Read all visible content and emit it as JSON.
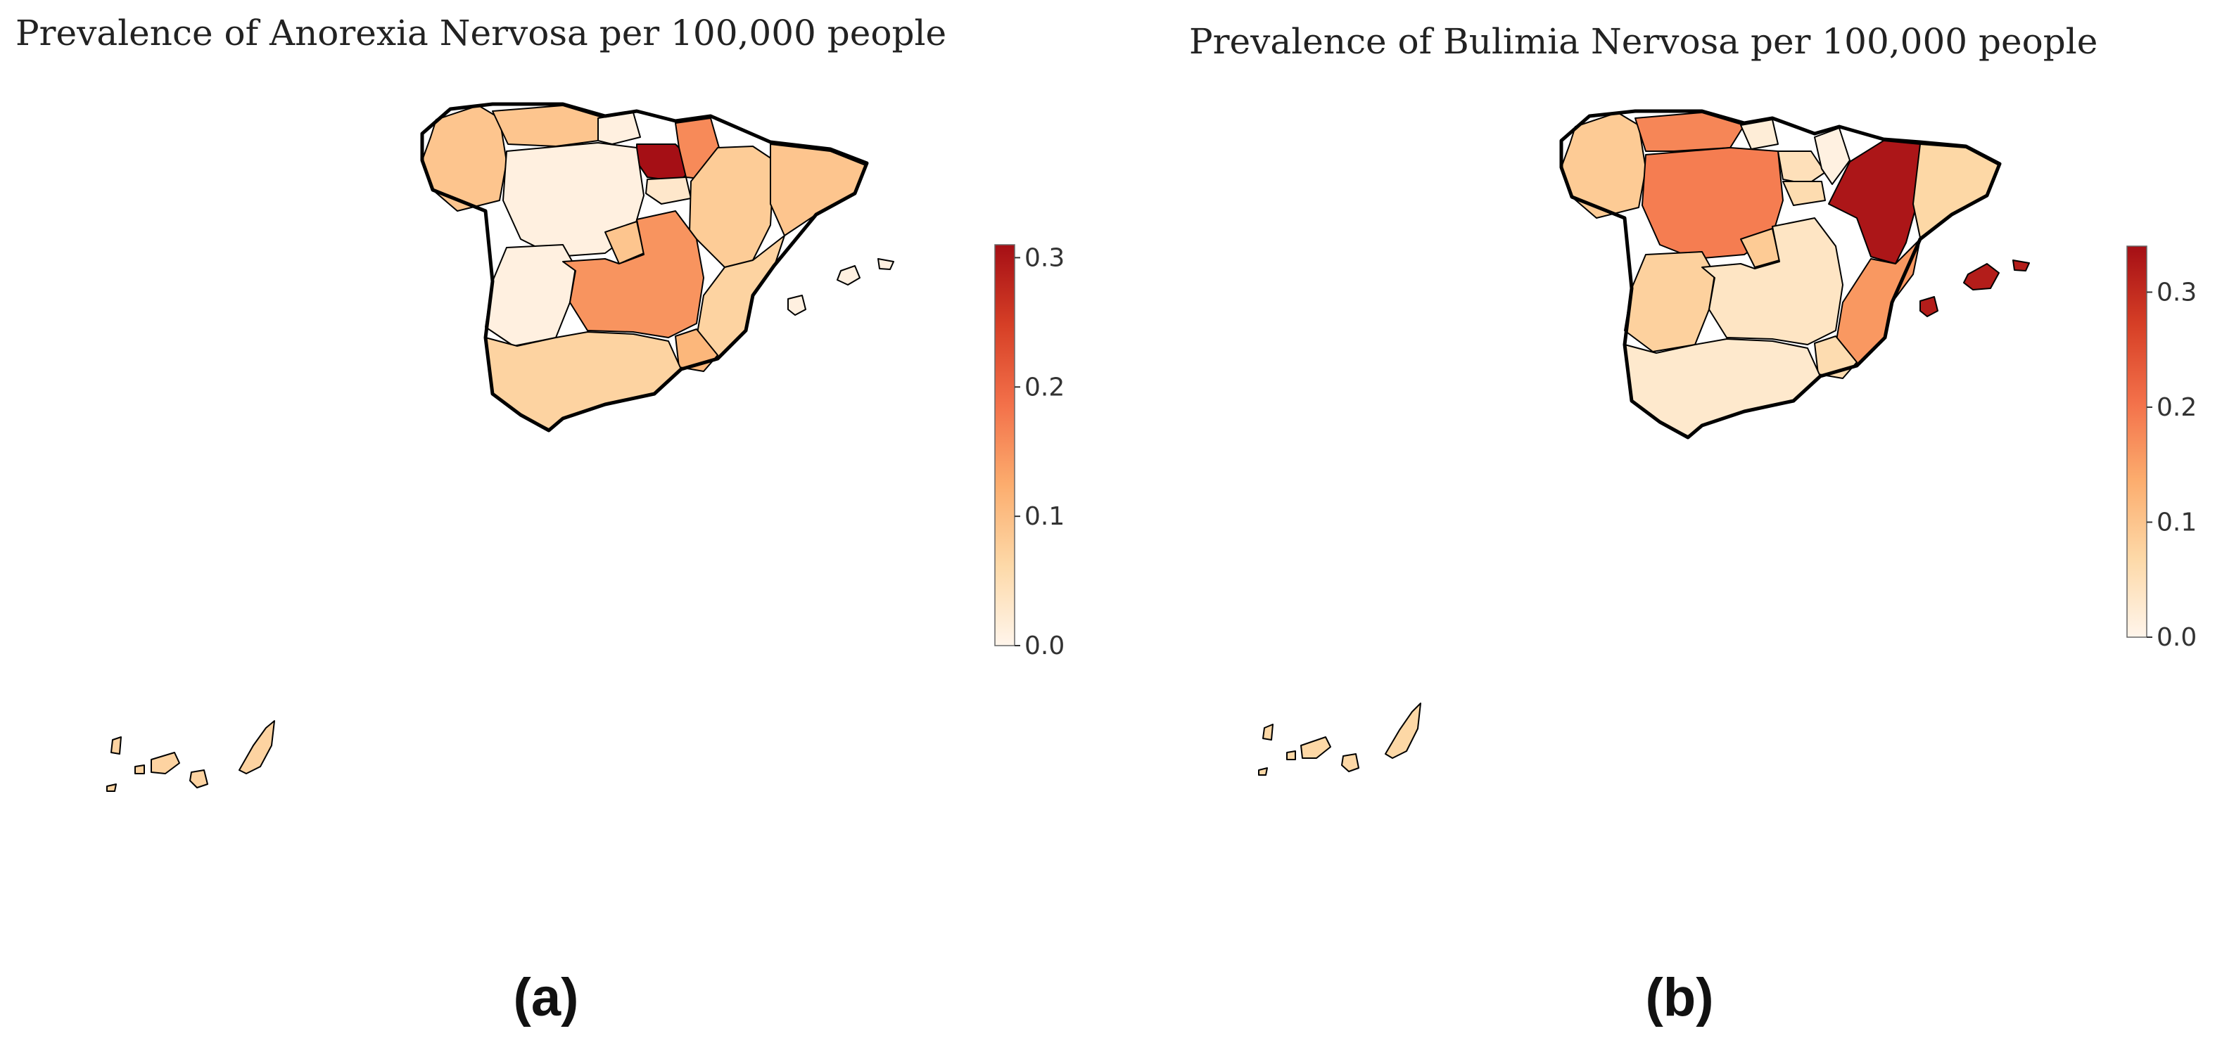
{
  "figure": {
    "panels": [
      {
        "id": "a",
        "title": "Prevalence of Anorexia Nervosa per 100,000 people",
        "label": "(a)",
        "colorbar": {
          "min": 0.0,
          "max": 0.31,
          "ticks": [
            "0.0",
            "0.1",
            "0.2",
            "0.3"
          ]
        },
        "regions": [
          {
            "name": "Galicia",
            "value": 0.09
          },
          {
            "name": "Asturias",
            "value": 0.09
          },
          {
            "name": "Cantabria",
            "value": 0.01
          },
          {
            "name": "País Vasco",
            "value": 0.31
          },
          {
            "name": "Navarra",
            "value": 0.16
          },
          {
            "name": "La Rioja",
            "value": 0.03
          },
          {
            "name": "Aragón",
            "value": 0.08
          },
          {
            "name": "Cataluña",
            "value": 0.09
          },
          {
            "name": "Castilla y León",
            "value": 0.01
          },
          {
            "name": "Madrid",
            "value": 0.09
          },
          {
            "name": "Extremadura",
            "value": 0.01
          },
          {
            "name": "Castilla-La Mancha",
            "value": 0.15
          },
          {
            "name": "Comunidad Valenciana",
            "value": 0.07
          },
          {
            "name": "Murcia",
            "value": 0.11
          },
          {
            "name": "Andalucía",
            "value": 0.07
          },
          {
            "name": "Islas Baleares",
            "value": 0.01
          },
          {
            "name": "Canarias",
            "value": 0.07
          }
        ]
      },
      {
        "id": "b",
        "title": "Prevalence of Bulimia Nervosa per 100,000 people",
        "label": "(b)",
        "colorbar": {
          "min": 0.0,
          "max": 0.34,
          "ticks": [
            "0.0",
            "0.1",
            "0.2",
            "0.3"
          ]
        },
        "regions": [
          {
            "name": "Galicia",
            "value": 0.09
          },
          {
            "name": "Asturias",
            "value": 0.18
          },
          {
            "name": "Cantabria",
            "value": 0.02
          },
          {
            "name": "País Vasco",
            "value": 0.05
          },
          {
            "name": "Navarra",
            "value": 0.01
          },
          {
            "name": "La Rioja",
            "value": 0.06
          },
          {
            "name": "Aragón",
            "value": 0.33
          },
          {
            "name": "Cataluña",
            "value": 0.07
          },
          {
            "name": "Castilla y León",
            "value": 0.19
          },
          {
            "name": "Madrid",
            "value": 0.09
          },
          {
            "name": "Extremadura",
            "value": 0.08
          },
          {
            "name": "Castilla-La Mancha",
            "value": 0.04
          },
          {
            "name": "Comunidad Valenciana",
            "value": 0.16
          },
          {
            "name": "Murcia",
            "value": 0.06
          },
          {
            "name": "Andalucía",
            "value": 0.03
          },
          {
            "name": "Islas Baleares",
            "value": 0.32
          },
          {
            "name": "Canarias",
            "value": 0.07
          }
        ]
      }
    ],
    "colormap": [
      "#fff5eb",
      "#fdd9a8",
      "#fcad6e",
      "#f3714a",
      "#d63f26",
      "#a50f15"
    ]
  }
}
